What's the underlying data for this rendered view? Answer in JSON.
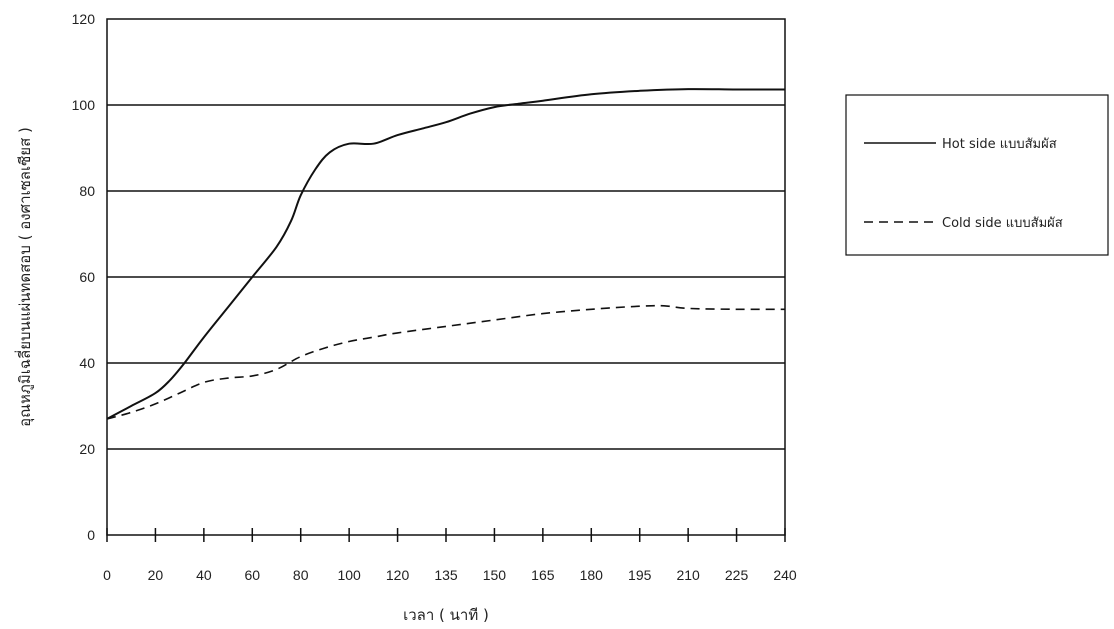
{
  "chart_data": {
    "type": "line",
    "title": "",
    "xlabel": "เวลา ( นาที )",
    "ylabel": "อุณหภูมิเฉลี่ยบนแผ่นทดสอบ ( องศาเซลเซียส )",
    "ylim": [
      0,
      120
    ],
    "yticks": [
      0,
      20,
      40,
      60,
      80,
      100,
      120
    ],
    "x_categories": [
      "0",
      "20",
      "40",
      "60",
      "80",
      "100",
      "120",
      "135",
      "150",
      "165",
      "180",
      "195",
      "210",
      "225",
      "240"
    ],
    "grid": "horizontal",
    "legend_position": "right",
    "series": [
      {
        "name": "Hot side แบบสัมผัส",
        "style": "solid",
        "color": "#111111",
        "points": [
          [
            0,
            27
          ],
          [
            0.5,
            30
          ],
          [
            1,
            33
          ],
          [
            1.3,
            36
          ],
          [
            1.6,
            40
          ],
          [
            2,
            46
          ],
          [
            2.5,
            53
          ],
          [
            3,
            60
          ],
          [
            3.5,
            67
          ],
          [
            3.8,
            73
          ],
          [
            4,
            79
          ],
          [
            4.3,
            85
          ],
          [
            4.6,
            89
          ],
          [
            5,
            91
          ],
          [
            5.5,
            91
          ],
          [
            6,
            93
          ],
          [
            6.5,
            94.5
          ],
          [
            7,
            96
          ],
          [
            7.5,
            98
          ],
          [
            8,
            99.5
          ],
          [
            8.5,
            100.3
          ],
          [
            9,
            101
          ],
          [
            10,
            102.5
          ],
          [
            11,
            103.3
          ],
          [
            12,
            103.7
          ],
          [
            13,
            103.6
          ],
          [
            14,
            103.6
          ]
        ]
      },
      {
        "name": "Cold side แบบสัมผัส",
        "style": "dashed",
        "color": "#111111",
        "points": [
          [
            0,
            27
          ],
          [
            0.5,
            28.5
          ],
          [
            1,
            30.5
          ],
          [
            1.5,
            33
          ],
          [
            2,
            35.5
          ],
          [
            2.5,
            36.5
          ],
          [
            3,
            37
          ],
          [
            3.5,
            38.5
          ],
          [
            4,
            41.5
          ],
          [
            4.5,
            43.5
          ],
          [
            5,
            45
          ],
          [
            5.5,
            46
          ],
          [
            6,
            47
          ],
          [
            7,
            48.5
          ],
          [
            8,
            50
          ],
          [
            9,
            51.5
          ],
          [
            10,
            52.5
          ],
          [
            11,
            53.2
          ],
          [
            11.5,
            53.3
          ],
          [
            12,
            52.7
          ],
          [
            13,
            52.5
          ],
          [
            14,
            52.5
          ]
        ]
      }
    ]
  }
}
